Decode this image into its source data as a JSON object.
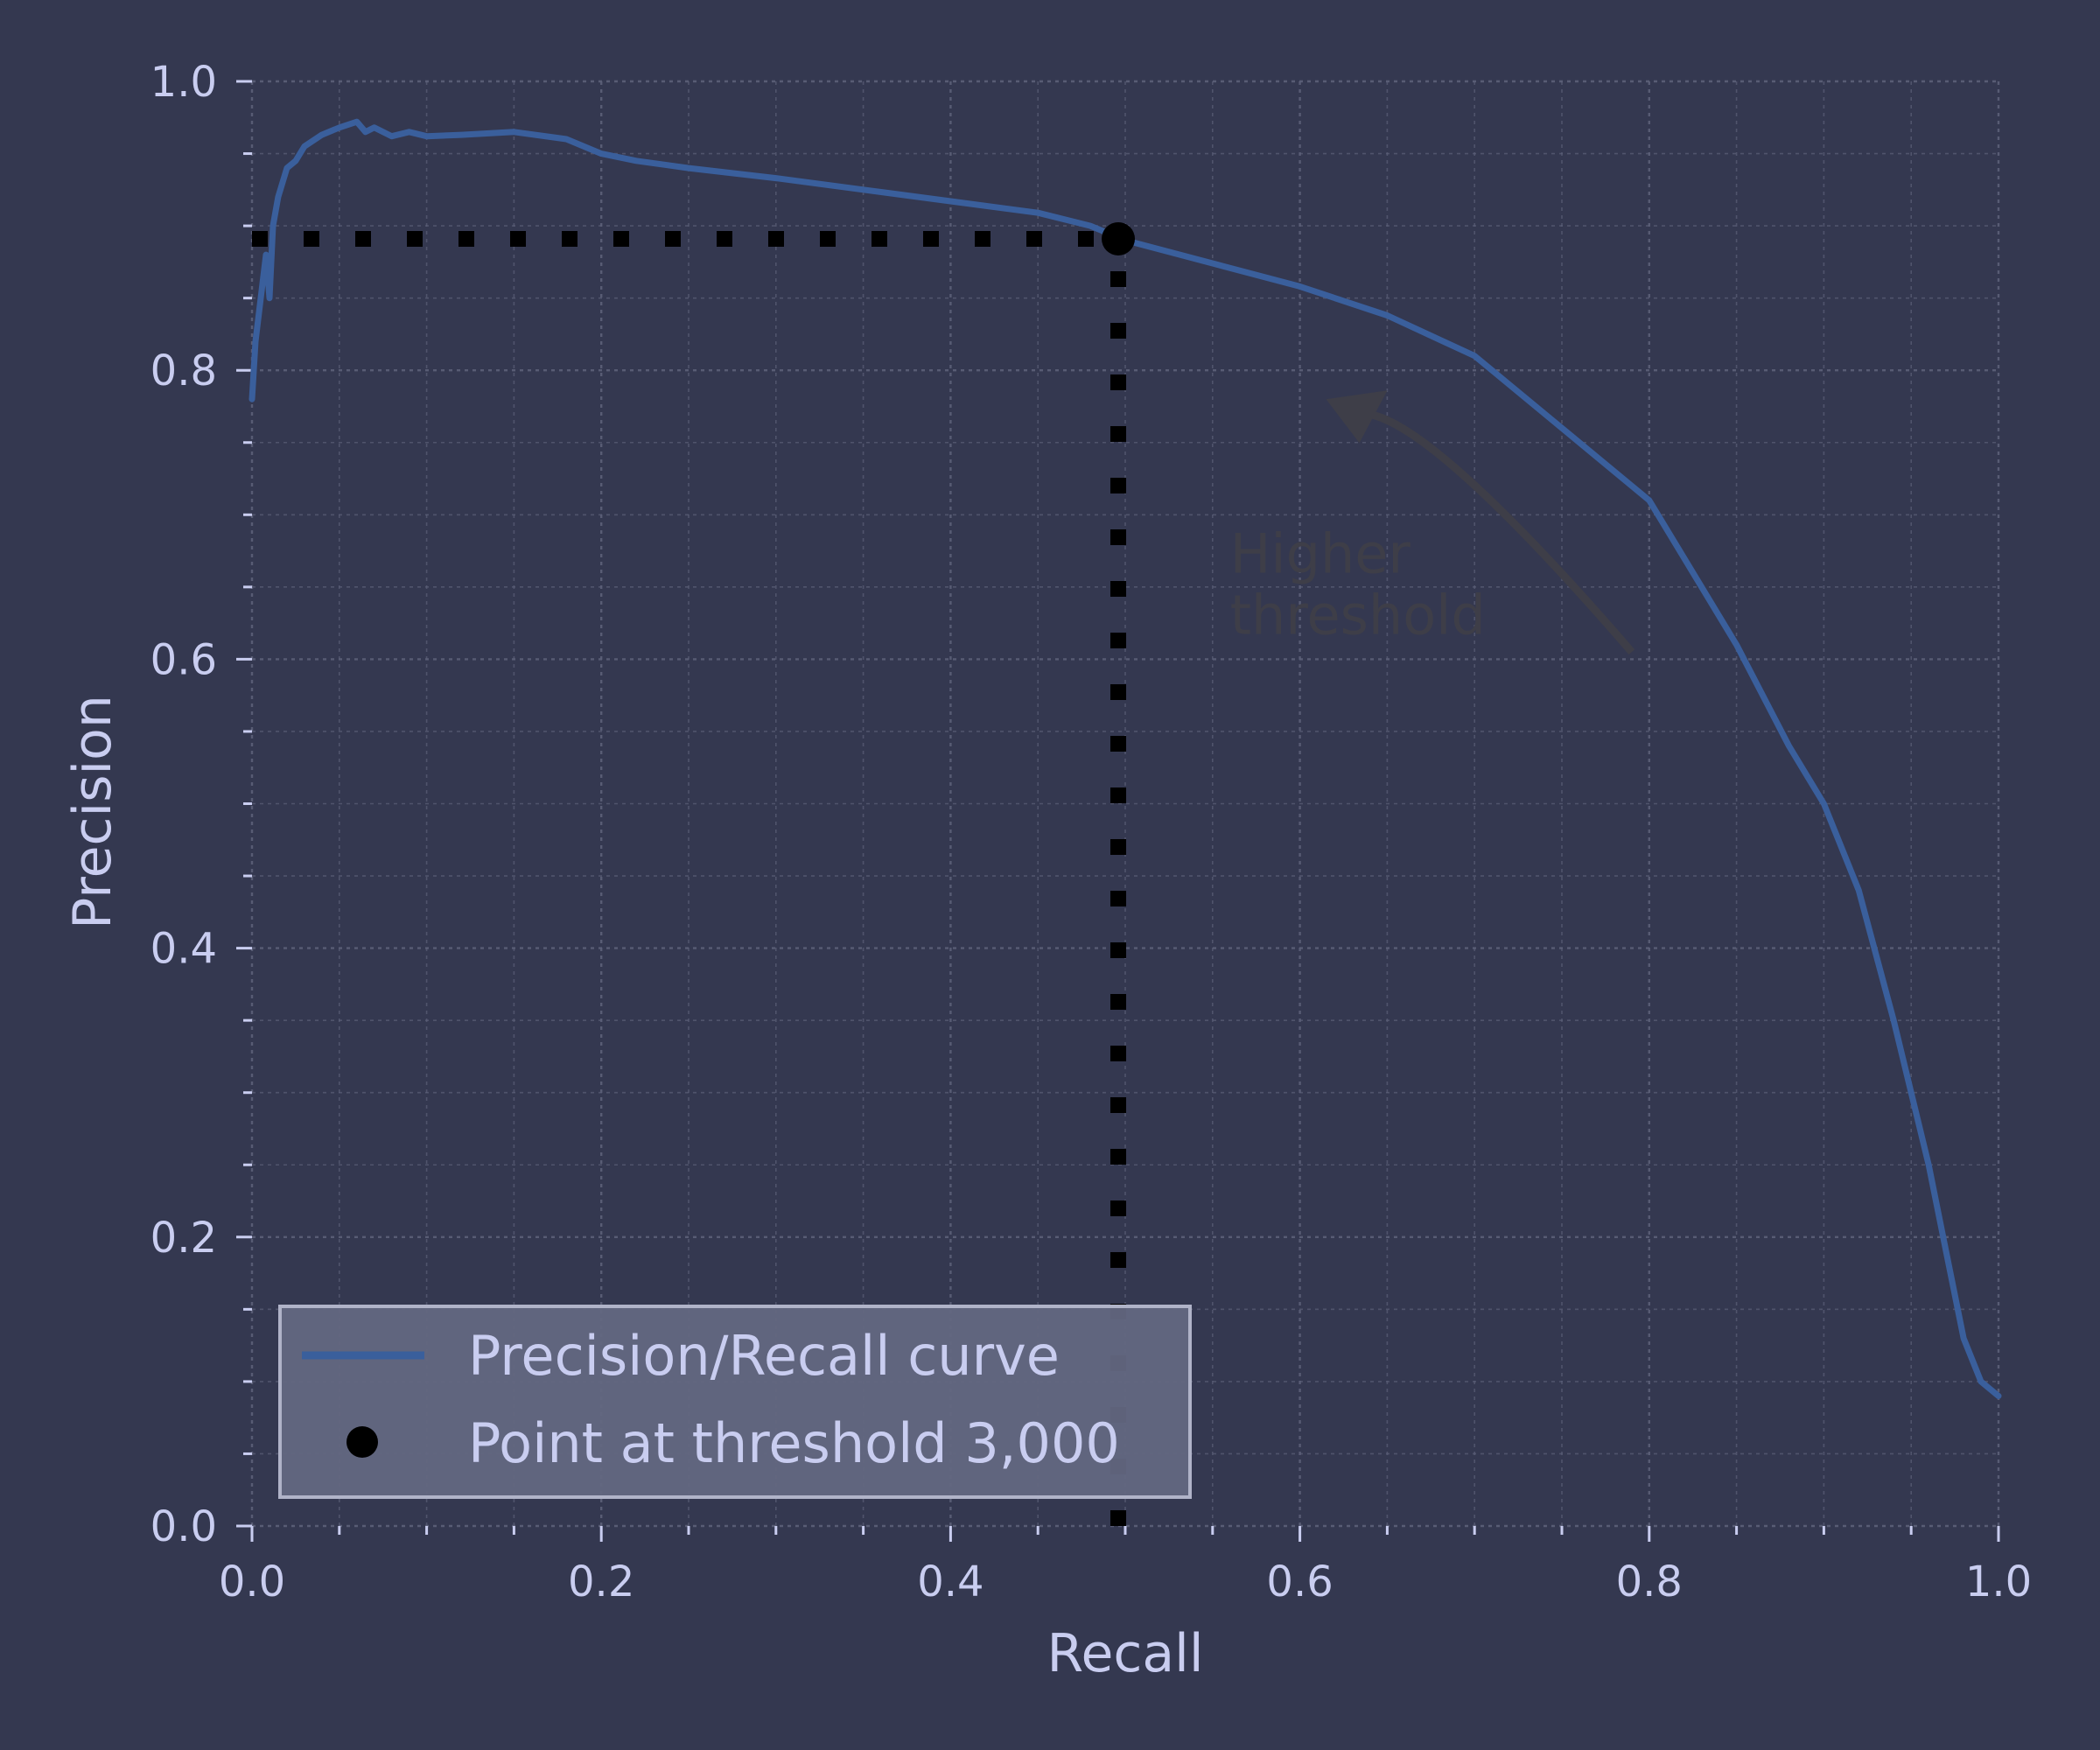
{
  "colors": {
    "background": "#343850",
    "grid": "#5c6079",
    "text": "#c9cdf0",
    "curve": "#3a5f9c",
    "point": "#000000",
    "annotation": "#3e3e48",
    "legend_bg": "#636781",
    "legend_border": "#b0b3c8"
  },
  "chart_data": {
    "type": "line",
    "title": "",
    "xlabel": "Recall",
    "ylabel": "Precision",
    "xlim": [
      0,
      1
    ],
    "ylim": [
      0,
      1
    ],
    "x_ticks": [
      "0.0",
      "0.2",
      "0.4",
      "0.6",
      "0.8",
      "1.0"
    ],
    "y_ticks": [
      "0.0",
      "0.2",
      "0.4",
      "0.6",
      "0.8",
      "1.0"
    ],
    "grid": true,
    "minor_grid": true,
    "legend_placement": "lower-left",
    "series": [
      {
        "name": "Precision/Recall curve",
        "style": "line",
        "color": "#3a5f9c",
        "x": [
          0.0,
          0.002,
          0.004,
          0.006,
          0.008,
          0.01,
          0.012,
          0.015,
          0.02,
          0.025,
          0.03,
          0.04,
          0.05,
          0.06,
          0.065,
          0.07,
          0.08,
          0.09,
          0.1,
          0.12,
          0.15,
          0.18,
          0.2,
          0.22,
          0.25,
          0.3,
          0.35,
          0.4,
          0.45,
          0.48,
          0.5,
          0.55,
          0.6,
          0.65,
          0.7,
          0.75,
          0.8,
          0.85,
          0.88,
          0.9,
          0.92,
          0.94,
          0.96,
          0.97,
          0.98,
          0.99,
          1.0
        ],
        "y": [
          0.78,
          0.82,
          0.84,
          0.86,
          0.88,
          0.85,
          0.9,
          0.92,
          0.94,
          0.945,
          0.955,
          0.963,
          0.968,
          0.972,
          0.965,
          0.968,
          0.962,
          0.965,
          0.962,
          0.963,
          0.965,
          0.96,
          0.95,
          0.945,
          0.94,
          0.933,
          0.925,
          0.917,
          0.909,
          0.9,
          0.89,
          0.874,
          0.858,
          0.838,
          0.81,
          0.76,
          0.71,
          0.61,
          0.54,
          0.5,
          0.44,
          0.35,
          0.25,
          0.19,
          0.13,
          0.1,
          0.09
        ]
      },
      {
        "name": "Point at threshold 3,000",
        "style": "point",
        "color": "#000000",
        "x": [
          0.496
        ],
        "y": [
          0.891
        ]
      }
    ],
    "reference_lines": {
      "horizontal": {
        "y": 0.891,
        "x_from": 0.0,
        "x_to": 0.496,
        "style": "dotted"
      },
      "vertical": {
        "x": 0.496,
        "y_from": 0.0,
        "y_to": 0.891,
        "style": "dotted"
      }
    },
    "annotations": [
      {
        "lines": [
          "Higher",
          "threshold"
        ],
        "text_at": [
          0.56,
          0.66
        ],
        "arrow_from": [
          0.79,
          0.605
        ],
        "arrow_to": [
          0.615,
          0.78
        ]
      }
    ]
  }
}
